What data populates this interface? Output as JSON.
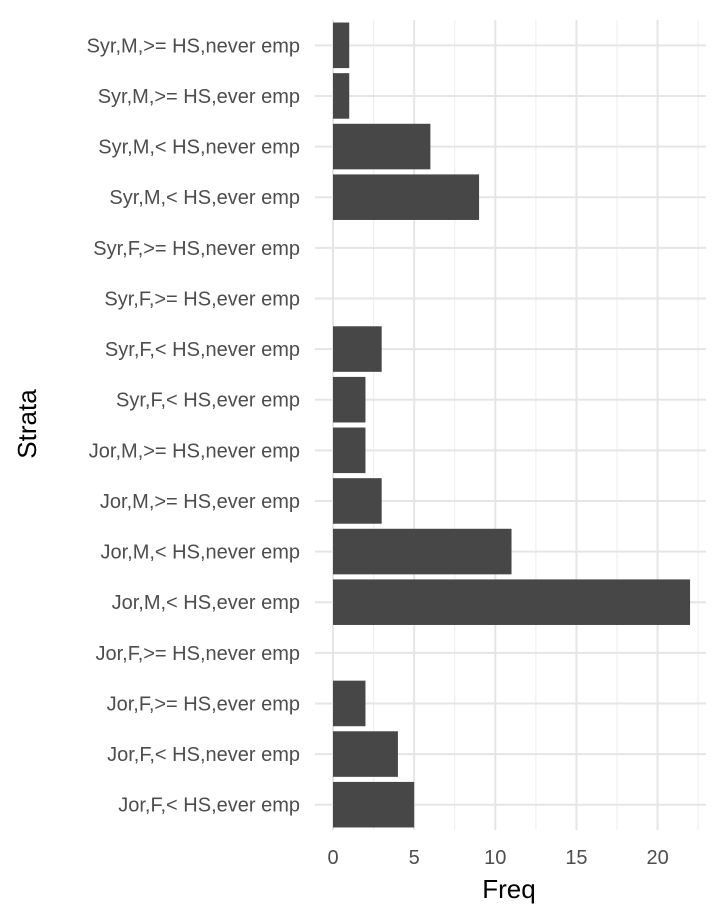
{
  "chart_data": {
    "type": "bar",
    "orientation": "horizontal",
    "xlabel": "Freq",
    "ylabel": "Strata",
    "xlim": [
      0,
      23
    ],
    "x_ticks": [
      0,
      5,
      10,
      15,
      20
    ],
    "grid": true,
    "bar_color": "#474747",
    "categories": [
      "Syr,M,>= HS,never emp",
      "Syr,M,>= HS,ever emp",
      "Syr,M,< HS,never emp",
      "Syr,M,< HS,ever emp",
      "Syr,F,>= HS,never emp",
      "Syr,F,>= HS,ever emp",
      "Syr,F,< HS,never emp",
      "Syr,F,< HS,ever emp",
      "Jor,M,>= HS,never emp",
      "Jor,M,>= HS,ever emp",
      "Jor,M,< HS,never emp",
      "Jor,M,< HS,ever emp",
      "Jor,F,>= HS,never emp",
      "Jor,F,>= HS,ever emp",
      "Jor,F,< HS,never emp",
      "Jor,F,< HS,ever emp"
    ],
    "values": [
      1,
      1,
      6,
      9,
      0,
      0,
      3,
      2,
      2,
      3,
      11,
      22,
      0,
      2,
      4,
      5
    ]
  }
}
